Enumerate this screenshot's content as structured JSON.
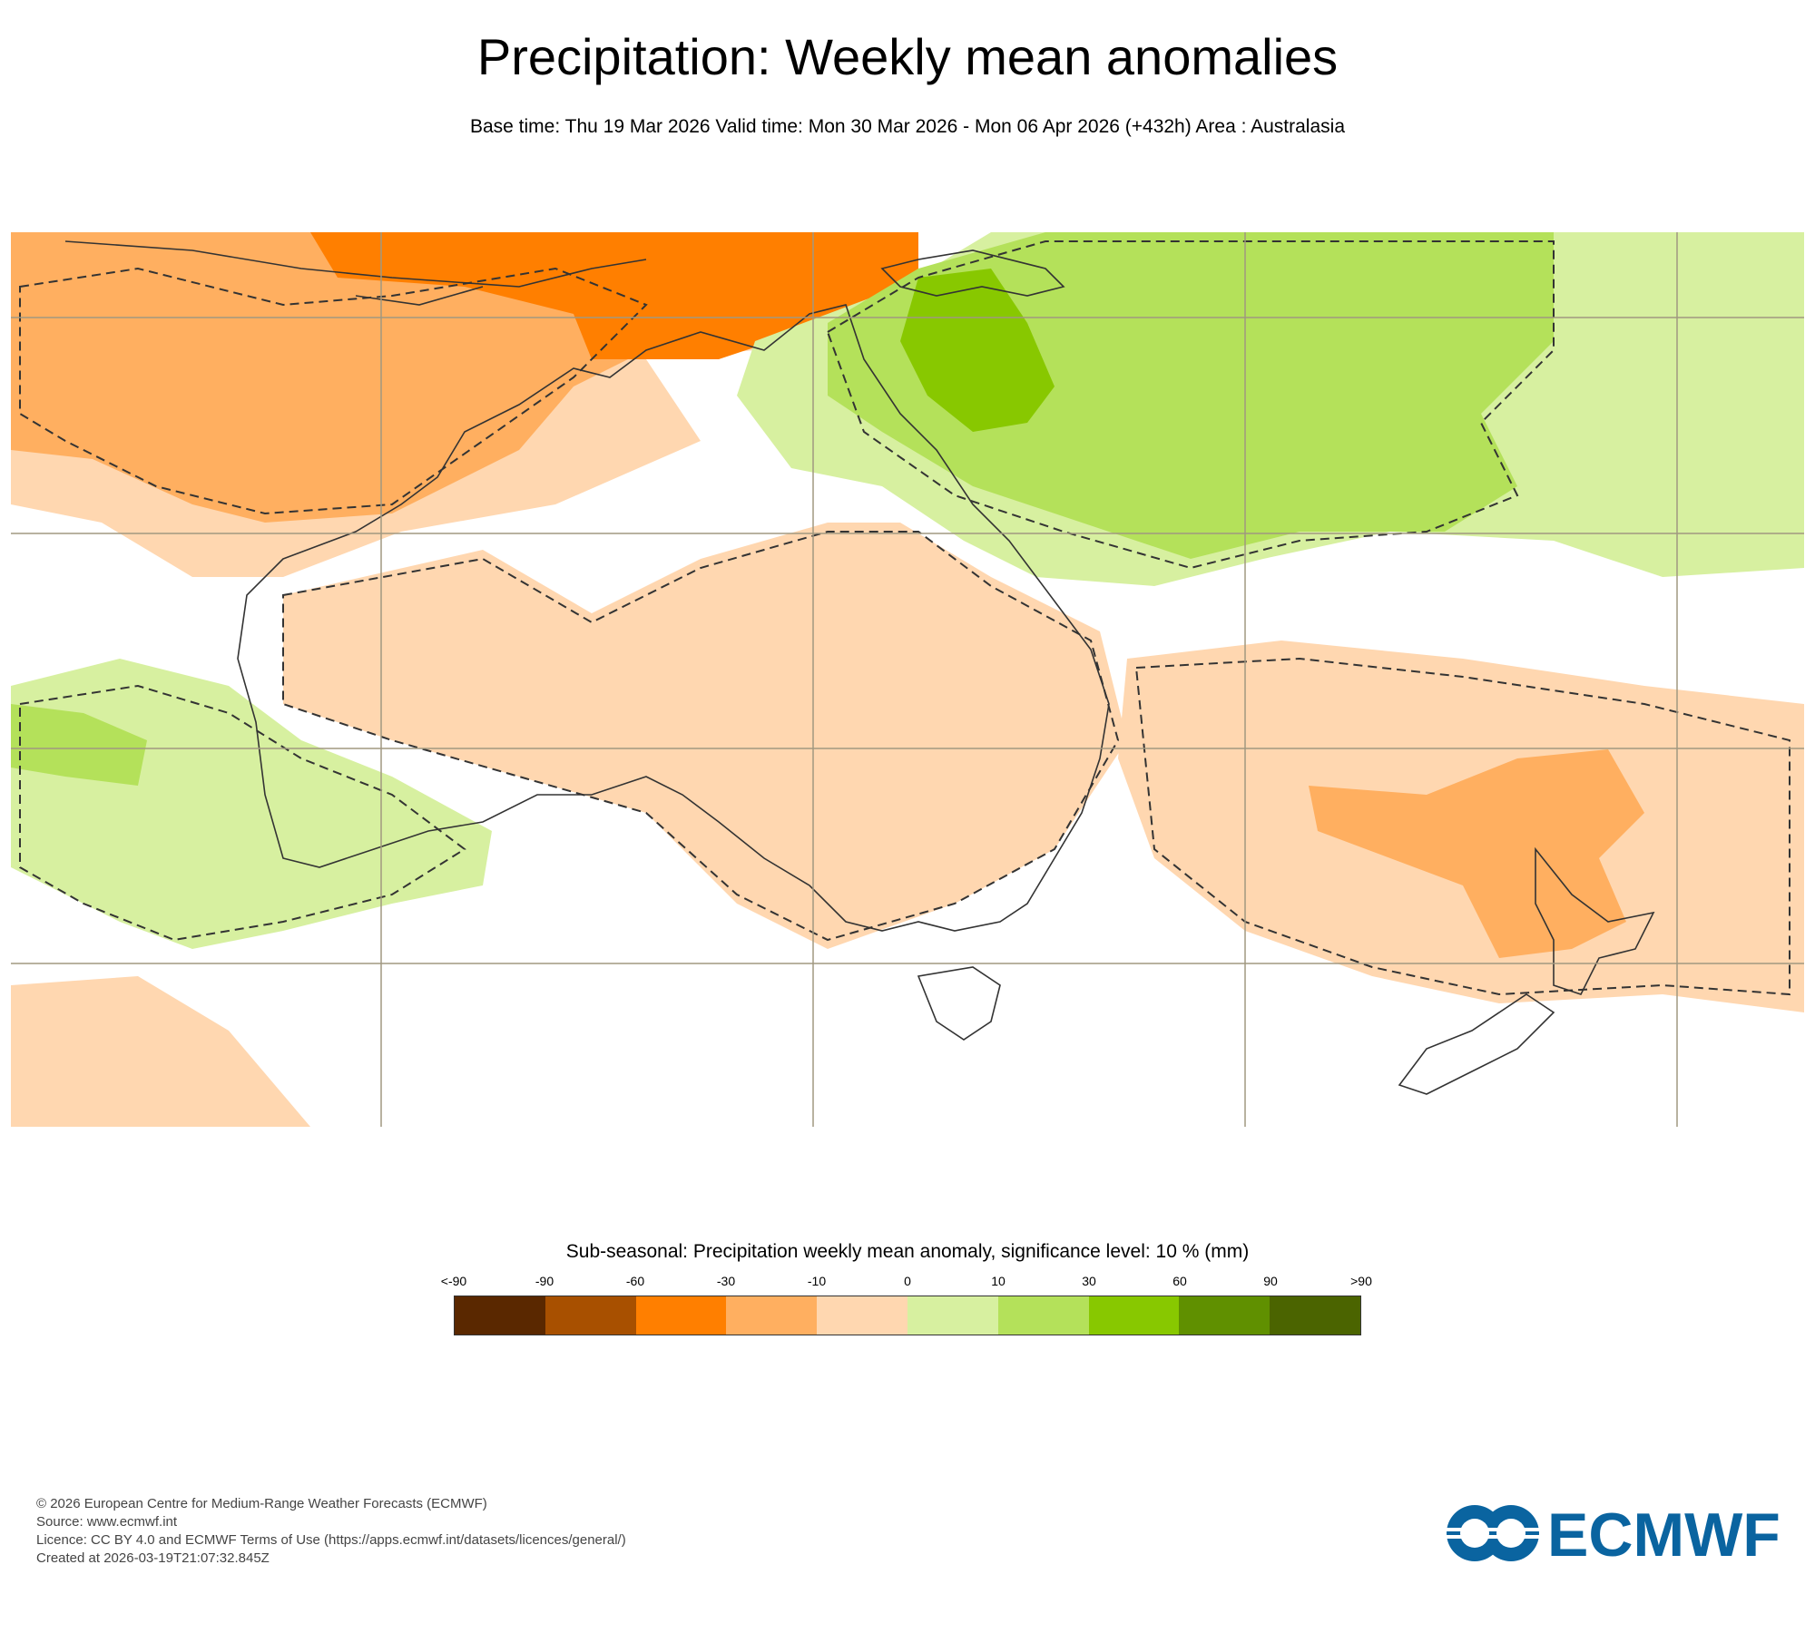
{
  "title": "Precipitation: Weekly mean anomalies",
  "subtitle": "Base time: Thu 19 Mar 2026 Valid time: Mon 30 Mar 2026 - Mon 06 Apr 2026 (+432h) Area : Australasia",
  "legend": {
    "title": "Sub-seasonal: Precipitation weekly mean anomaly, significance level: 10 % (mm)",
    "ticks": [
      "<-90",
      "-90",
      "-60",
      "-30",
      "-10",
      "0",
      "10",
      "30",
      "60",
      "90",
      ">90"
    ],
    "colors": [
      "#5a2800",
      "#a85000",
      "#ff7f00",
      "#ffaf60",
      "#ffd7b0",
      "#d7f0a0",
      "#b4e15a",
      "#88c800",
      "#609000",
      "#4b6400"
    ]
  },
  "map_colors": {
    "ocean": "#ffffff",
    "anom_neg_light": "#ffd7b0",
    "anom_neg_mid": "#ffaf60",
    "anom_neg_strong": "#ff7f00",
    "anom_pos_light": "#d7f0a0",
    "anom_pos_mid": "#b4e15a",
    "anom_pos_strong": "#88c800",
    "gridline": "#a09880",
    "coastline": "#333333"
  },
  "footer": {
    "copyright": "© 2026 European Centre for Medium-Range Weather Forecasts (ECMWF)",
    "source": "Source: www.ecmwf.int",
    "licence": "Licence: CC BY 4.0 and ECMWF Terms of Use (https://apps.ecmwf.int/datasets/licences/general/)",
    "created": "Created at 2026-03-19T21:07:32.845Z"
  },
  "logo": {
    "text": "ECMWF",
    "color": "#0a64a0"
  }
}
